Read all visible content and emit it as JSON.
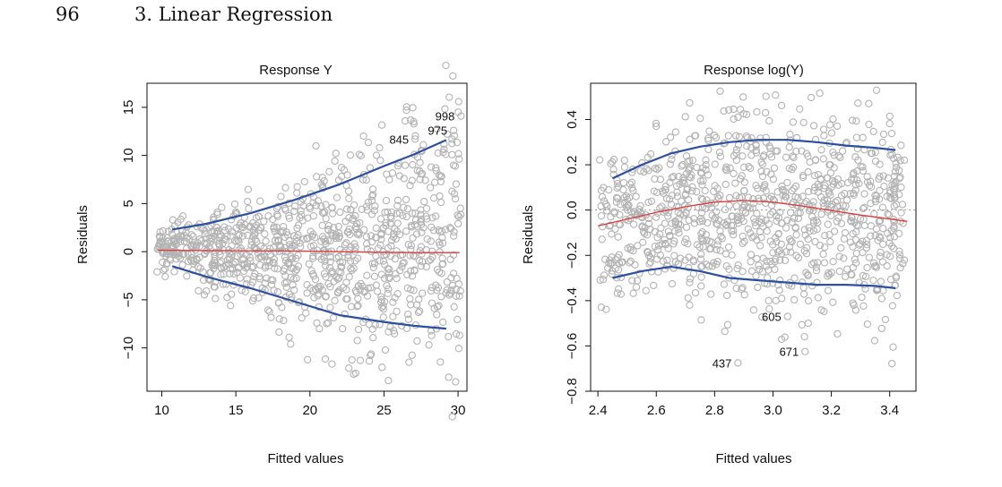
{
  "header": {
    "page_number": "96",
    "section_title": "3. Linear Regression"
  },
  "colors": {
    "points": "#b3b3b3",
    "smooth": "#e03a3a",
    "envelope": "#2c4fa3",
    "axis": "#111111"
  },
  "chart_data": [
    {
      "type": "scatter",
      "title": "Response Y",
      "xlabel": "Fitted values",
      "ylabel": "Residuals",
      "xlim": [
        9,
        30.6
      ],
      "ylim": [
        -14.5,
        17.5
      ],
      "xticks": [
        10,
        15,
        20,
        25,
        30
      ],
      "yticks": [
        -10,
        -5,
        0,
        5,
        10,
        15
      ],
      "n_points": 1000,
      "spread": {
        "x": [
          10.7,
          13,
          16,
          19,
          22,
          25,
          27,
          29.2
        ],
        "lower": [
          -1.5,
          -2.6,
          -3.8,
          -5.2,
          -6.6,
          -7.3,
          -7.7,
          -8.0
        ],
        "upper": [
          2.3,
          2.9,
          4.0,
          5.4,
          7.0,
          8.9,
          10.1,
          11.6
        ]
      },
      "lines": [
        {
          "name": "smooth",
          "color": "#e03a3a",
          "x": [
            9.7,
            12,
            15,
            18,
            21,
            24,
            27,
            30.1
          ],
          "y": [
            0.15,
            0.12,
            0.1,
            0.08,
            0.04,
            -0.05,
            -0.1,
            -0.1
          ]
        },
        {
          "name": "upper",
          "color": "#2c4fa3",
          "x": [
            10.7,
            13,
            16,
            19,
            22,
            25,
            27,
            29.2
          ],
          "y": [
            2.3,
            2.9,
            4.0,
            5.4,
            7.0,
            8.9,
            10.1,
            11.6
          ]
        },
        {
          "name": "lower",
          "color": "#2c4fa3",
          "x": [
            10.7,
            13,
            16,
            19,
            22,
            25,
            27,
            29.2
          ],
          "y": [
            -1.5,
            -2.6,
            -3.8,
            -5.2,
            -6.6,
            -7.3,
            -7.7,
            -8.0
          ]
        }
      ],
      "labeled_points": [
        {
          "label": "998",
          "x": 30.2,
          "y": 14.1
        },
        {
          "label": "975",
          "x": 29.7,
          "y": 12.6
        },
        {
          "label": "845",
          "x": 27.1,
          "y": 11.7
        }
      ],
      "outliers": [
        {
          "x": 18.7,
          "y": -9.6
        },
        {
          "x": 23.4,
          "y": -11.3
        },
        {
          "x": 22.2,
          "y": -8.0
        },
        {
          "x": 24.7,
          "y": 10.8
        }
      ]
    },
    {
      "type": "scatter",
      "title": "Response log(Y)",
      "xlabel": "Fitted values",
      "ylabel": "Residuals",
      "xlim": [
        2.375,
        3.49
      ],
      "ylim": [
        -0.8,
        0.56
      ],
      "xticks": [
        2.4,
        2.6,
        2.8,
        3.0,
        3.2,
        3.4
      ],
      "yticks": [
        -0.8,
        -0.6,
        -0.4,
        -0.2,
        0.0,
        0.2,
        0.4
      ],
      "dotted_zero": true,
      "n_points": 1000,
      "spread": {
        "x": [
          2.45,
          2.55,
          2.65,
          2.75,
          2.85,
          2.95,
          3.05,
          3.15,
          3.25,
          3.35,
          3.42
        ],
        "lower": [
          -0.3,
          -0.27,
          -0.25,
          -0.27,
          -0.3,
          -0.31,
          -0.32,
          -0.33,
          -0.33,
          -0.335,
          -0.345
        ],
        "upper": [
          0.14,
          0.2,
          0.25,
          0.28,
          0.3,
          0.31,
          0.31,
          0.3,
          0.285,
          0.275,
          0.265
        ]
      },
      "lines": [
        {
          "name": "smooth",
          "color": "#e03a3a",
          "x": [
            2.4,
            2.5,
            2.6,
            2.7,
            2.8,
            2.9,
            3.0,
            3.1,
            3.2,
            3.3,
            3.46
          ],
          "y": [
            -0.07,
            -0.04,
            -0.01,
            0.015,
            0.035,
            0.042,
            0.035,
            0.018,
            -0.002,
            -0.022,
            -0.05
          ]
        },
        {
          "name": "upper",
          "color": "#2c4fa3",
          "x": [
            2.45,
            2.55,
            2.65,
            2.75,
            2.85,
            2.95,
            3.05,
            3.15,
            3.25,
            3.35,
            3.42
          ],
          "y": [
            0.14,
            0.2,
            0.25,
            0.28,
            0.3,
            0.31,
            0.31,
            0.3,
            0.285,
            0.275,
            0.265
          ]
        },
        {
          "name": "lower",
          "color": "#2c4fa3",
          "x": [
            2.45,
            2.55,
            2.65,
            2.75,
            2.85,
            2.95,
            3.05,
            3.15,
            3.25,
            3.35,
            3.42
          ],
          "y": [
            -0.3,
            -0.27,
            -0.25,
            -0.27,
            -0.3,
            -0.31,
            -0.32,
            -0.33,
            -0.33,
            -0.335,
            -0.345
          ]
        }
      ],
      "labeled_points": [
        {
          "label": "605",
          "x": 3.05,
          "y": -0.47
        },
        {
          "label": "671",
          "x": 3.11,
          "y": -0.625
        },
        {
          "label": "437",
          "x": 2.88,
          "y": -0.675
        }
      ],
      "outliers": [
        {
          "x": 2.985,
          "y": -0.4
        },
        {
          "x": 3.01,
          "y": -0.4
        },
        {
          "x": 3.03,
          "y": -0.39
        },
        {
          "x": 2.88,
          "y": 0.41
        },
        {
          "x": 2.6,
          "y": 0.37
        }
      ]
    }
  ]
}
